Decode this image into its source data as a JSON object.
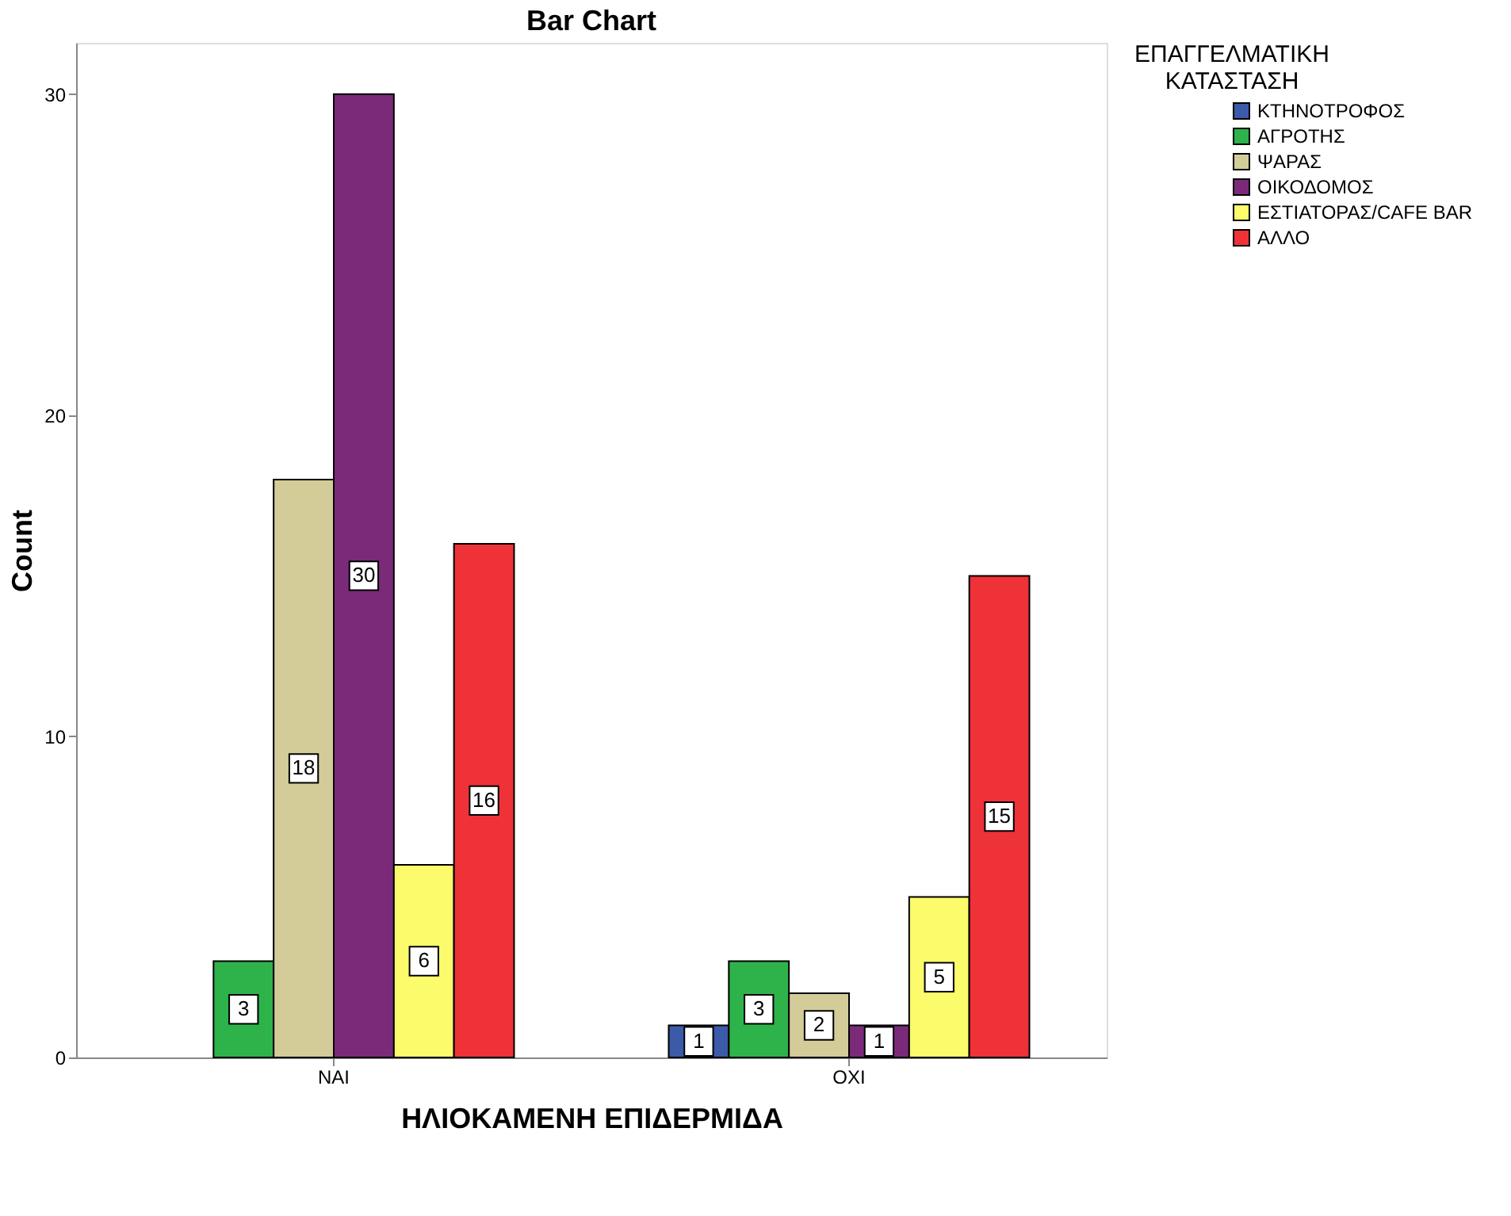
{
  "chart_data": {
    "type": "bar",
    "title": "Bar Chart",
    "xlabel": "ΗΛΙΟΚΑΜΕΝΗ ΕΠΙΔΕΡΜΙΔΑ",
    "ylabel": "Count",
    "legend_title": "ΕΠΑΓΓΕΛΜΑΤΙΚΗ ΚΑΤΑΣΤΑΣΗ",
    "categories": [
      "ΝΑΙ",
      "ΟΧΙ"
    ],
    "series": [
      {
        "name": "ΚΤΗΝΟΤΡΟΦΟΣ",
        "color": "#3b5ba8",
        "values": [
          null,
          1
        ]
      },
      {
        "name": "ΑΓΡΟΤΗΣ",
        "color": "#2db34a",
        "values": [
          3,
          3
        ]
      },
      {
        "name": "ΨΑΡΑΣ",
        "color": "#d3cc98",
        "values": [
          18,
          2
        ]
      },
      {
        "name": "ΟΙΚΟΔΟΜΟΣ",
        "color": "#7b2a7a",
        "values": [
          30,
          1
        ]
      },
      {
        "name": "ΕΣΤΙΑΤΟΡΑΣ/CAFE BAR",
        "color": "#fbfb6b",
        "values": [
          6,
          5
        ]
      },
      {
        "name": "ΑΛΛΟ",
        "color": "#ee3238",
        "values": [
          16,
          15
        ]
      }
    ],
    "ylim": [
      0,
      31.6
    ],
    "yticks": [
      0,
      10,
      20,
      30
    ],
    "grid": false,
    "legend": "top right",
    "data_labels": true
  }
}
